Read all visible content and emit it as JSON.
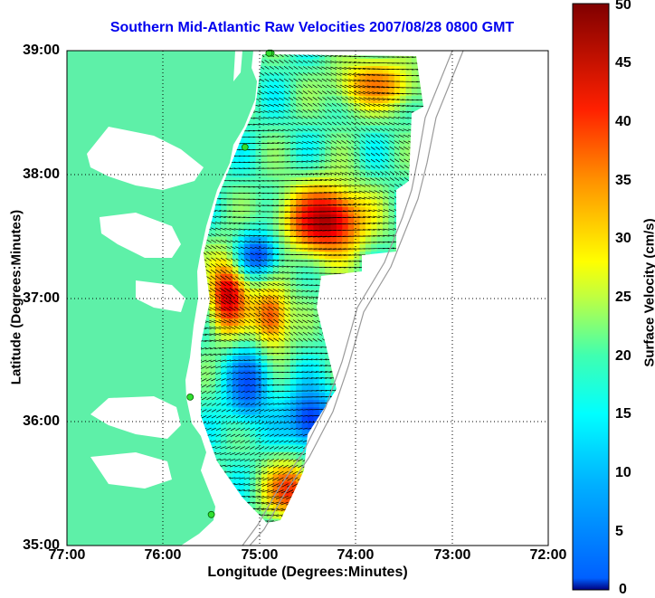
{
  "title": "Southern Mid-Atlantic Raw Velocities 2007/08/28 0800 GMT",
  "chart_data": {
    "type": "vector-field-map",
    "title": "Southern Mid-Atlantic Raw Velocities 2007/08/28 0800 GMT",
    "xlabel": "Longitude (Degrees:Minutes)",
    "ylabel": "Latitude (Degrees:Minutes)",
    "x_ticks": [
      "77:00",
      "76:00",
      "75:00",
      "74:00",
      "73:00",
      "72:00"
    ],
    "y_ticks": [
      "39:00",
      "38:00",
      "37:00",
      "36:00",
      "35:00"
    ],
    "xlim": [
      -77,
      -72
    ],
    "ylim": [
      35,
      39
    ],
    "grid": true,
    "colorbar": {
      "label": "Surface Velocity (cm/s)",
      "range": [
        0,
        50
      ],
      "ticks": [
        "50",
        "45",
        "40",
        "35",
        "30",
        "25",
        "20",
        "15",
        "10",
        "5",
        "0"
      ],
      "colormap": "jet"
    },
    "land_color": "#5ef0a8",
    "stations": [
      [
        -74.88,
        38.98
      ],
      [
        -74.9,
        38.98
      ],
      [
        -75.15,
        38.22
      ],
      [
        -75.72,
        36.2
      ],
      [
        -75.5,
        35.25
      ]
    ],
    "speed_regions": [
      {
        "lon": [
          -74.75,
          -73.95
        ],
        "lat": [
          37.85,
          37.35
        ],
        "speed": 48
      },
      {
        "lon": [
          -74.2,
          -73.45
        ],
        "lat": [
          38.85,
          38.55
        ],
        "speed": 38
      },
      {
        "lon": [
          -75.05,
          -74.8
        ],
        "lat": [
          37.1,
          36.55
        ],
        "speed": 40
      },
      {
        "lon": [
          -75.45,
          -75.25
        ],
        "lat": [
          37.3,
          36.7
        ],
        "speed": 47
      },
      {
        "lon": [
          -74.9,
          -74.55
        ],
        "lat": [
          35.6,
          35.25
        ],
        "speed": 42
      },
      {
        "lon": [
          -75.3,
          -75.0
        ],
        "lat": [
          36.55,
          36.0
        ],
        "speed": 10
      },
      {
        "lon": [
          -74.7,
          -74.3
        ],
        "lat": [
          36.2,
          35.8
        ],
        "speed": 9
      },
      {
        "lon": [
          -75.2,
          -74.9
        ],
        "lat": [
          37.45,
          37.2
        ],
        "speed": 10
      }
    ]
  }
}
